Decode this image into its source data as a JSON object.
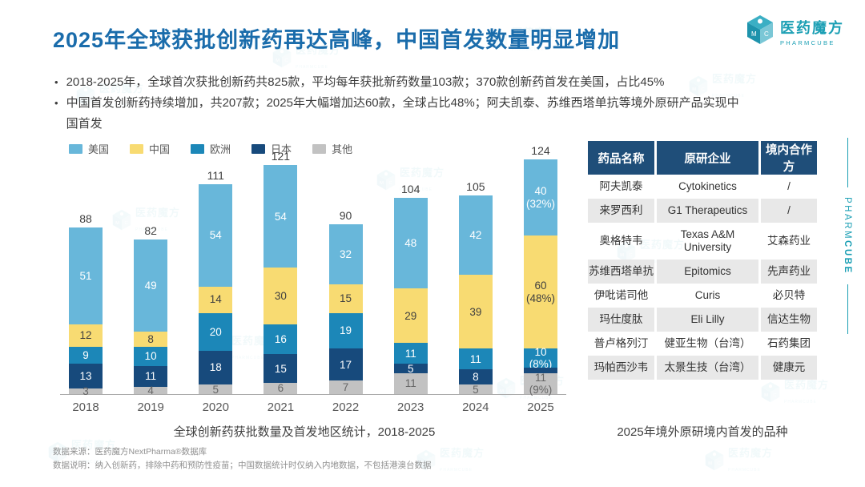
{
  "header": {
    "title": "2025年全球获批创新药再达高峰，中国首发数量明显增加",
    "brand": {
      "name": "医药魔方",
      "sub": "PHARMCUBE"
    }
  },
  "bullets": [
    "2018-2025年，全球首次获批创新药共825款，平均每年获批新药数量103款；370款创新药首发在美国，占比45%",
    "中国首发创新药持续增加，共207款；2025年大幅增加达60款，全球占比48%；阿夫凯泰、苏维西塔单抗等境外原研产品实现中国首发"
  ],
  "chart_data": {
    "type": "bar",
    "stacked": true,
    "title": "全球创新药获批数量及首发地区统计，2018-2025",
    "legend_position": "top-left",
    "grid": false,
    "ylim": [
      0,
      130
    ],
    "categories": [
      "2018",
      "2019",
      "2020",
      "2021",
      "2022",
      "2023",
      "2024",
      "2025"
    ],
    "totals": [
      88,
      82,
      111,
      121,
      90,
      104,
      105,
      124
    ],
    "series": [
      {
        "name": "美国",
        "color": "#68B7DA",
        "label_color": "#FFFFFF",
        "values": [
          51,
          49,
          54,
          54,
          32,
          48,
          42,
          40
        ],
        "labels": [
          "51",
          "49",
          "54",
          "54",
          "32",
          "48",
          "42",
          "40\n(32%)"
        ]
      },
      {
        "name": "中国",
        "color": "#F8DB72",
        "label_color": "#404040",
        "values": [
          12,
          8,
          14,
          30,
          15,
          29,
          39,
          60
        ],
        "labels": [
          "12",
          "8",
          "14",
          "30",
          "15",
          "29",
          "39",
          "60\n(48%)"
        ]
      },
      {
        "name": "欧洲",
        "color": "#1C87B8",
        "label_color": "#FFFFFF",
        "values": [
          9,
          10,
          20,
          16,
          19,
          11,
          11,
          10
        ],
        "labels": [
          "9",
          "10",
          "20",
          "16",
          "19",
          "11",
          "11",
          "10\n(8%)"
        ]
      },
      {
        "name": "日本",
        "color": "#174A7C",
        "label_color": "#FFFFFF",
        "values": [
          13,
          11,
          18,
          15,
          17,
          5,
          8,
          3
        ],
        "labels": [
          "13",
          "11",
          "18",
          "15",
          "17",
          "5",
          "8",
          ""
        ]
      },
      {
        "name": "其他",
        "color": "#C2C2C2",
        "label_color": "#666666",
        "values": [
          3,
          4,
          5,
          6,
          7,
          11,
          5,
          11
        ],
        "labels": [
          "3",
          "4",
          "5",
          "6",
          "7",
          "11",
          "5",
          "11\n(9%)"
        ]
      }
    ]
  },
  "table": {
    "headers": [
      "药品名称",
      "原研企业",
      "境内合作方"
    ],
    "rows": [
      [
        "阿夫凯泰",
        "Cytokinetics",
        "/"
      ],
      [
        "来罗西利",
        "G1 Therapeutics",
        "/"
      ],
      [
        "奥格特韦",
        "Texas A&M University",
        "艾森药业"
      ],
      [
        "苏维西塔单抗",
        "Epitomics",
        "先声药业"
      ],
      [
        "伊吡诺司他",
        "Curis",
        "必贝特"
      ],
      [
        "玛仕度肽",
        "Eli Lilly",
        "信达生物"
      ],
      [
        "普卢格列汀",
        "健亚生物（台湾）",
        "石药集团"
      ],
      [
        "玛帕西沙韦",
        "太景生技（台湾）",
        "健康元"
      ]
    ],
    "caption": "2025年境外原研境内首发的品种"
  },
  "footnotes": [
    "数据来源：医药魔方NextPharma®数据库",
    "数据说明：纳入创新药，排除中药和预防性疫苗；中国数据统计时仅纳入内地数据，不包括港澳台数据"
  ],
  "side_rail": {
    "part1": "PHARM",
    "part2": "CUBE"
  },
  "watermark": {
    "name": "医药魔方",
    "sub": "PHARMCUBE"
  },
  "colors": {
    "title": "#1A6CAB",
    "brand": "#1B9FB4",
    "table_header_bg": "#1F4E79",
    "table_row_alt_bg": "#E8E8E8",
    "axis_line": "#ABABAB"
  }
}
